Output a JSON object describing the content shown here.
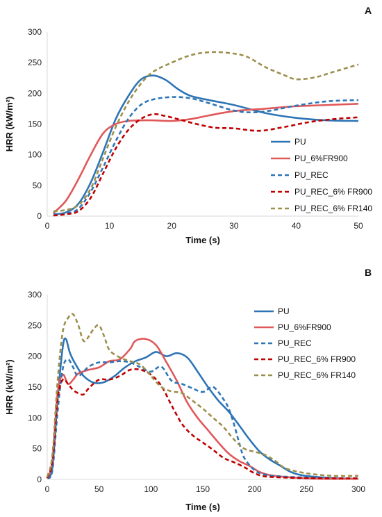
{
  "chart_data": [
    {
      "type": "line",
      "panel_label": "A",
      "xlabel": "Time (s)",
      "ylabel": "HRR (kW/m²)",
      "xlim": [
        0,
        50
      ],
      "ylim": [
        0,
        300
      ],
      "x_ticks": [
        "0",
        "10",
        "20",
        "30",
        "40",
        "50"
      ],
      "y_ticks": [
        "0",
        "50",
        "100",
        "150",
        "200",
        "250",
        "300"
      ],
      "grid": false,
      "legend_position": "right",
      "series": [
        {
          "name": "PU",
          "color": "#2e75b6",
          "dash": "solid",
          "x": [
            1,
            3,
            5,
            7,
            9,
            11,
            13,
            15,
            17,
            19,
            21,
            23,
            26,
            30,
            35,
            40,
            45,
            50
          ],
          "y": [
            3,
            6,
            20,
            55,
            105,
            158,
            195,
            222,
            229,
            222,
            207,
            196,
            189,
            181,
            168,
            160,
            156,
            155
          ]
        },
        {
          "name": "PU_6%FR900",
          "color": "#e0585a",
          "dash": "solid",
          "x": [
            1,
            3,
            5,
            7,
            9,
            11,
            13,
            15,
            17,
            20,
            23,
            26,
            30,
            35,
            40,
            45,
            50
          ],
          "y": [
            5,
            25,
            60,
            100,
            135,
            150,
            155,
            156,
            156,
            155,
            158,
            164,
            171,
            175,
            179,
            181,
            183
          ]
        },
        {
          "name": "PU_REC",
          "color": "#2e75b6",
          "dash": "dashed",
          "x": [
            1,
            3,
            5,
            7,
            9,
            11,
            13,
            15,
            17,
            20,
            23,
            26,
            30,
            33,
            36,
            40,
            45,
            50
          ],
          "y": [
            2,
            4,
            12,
            40,
            80,
            122,
            158,
            181,
            190,
            194,
            192,
            184,
            172,
            169,
            172,
            180,
            187,
            189
          ]
        },
        {
          "name": "PU_REC_6% FR900",
          "color": "#c00000",
          "dash": "dashed",
          "x": [
            1,
            3,
            5,
            7,
            9,
            11,
            13,
            15,
            17,
            19,
            21,
            24,
            27,
            30,
            34,
            38,
            42,
            46,
            50
          ],
          "y": [
            1,
            3,
            8,
            30,
            70,
            110,
            140,
            158,
            166,
            163,
            158,
            150,
            144,
            143,
            139,
            145,
            153,
            158,
            161
          ]
        },
        {
          "name": "PU_REC_6% FR140",
          "color": "#9c8f4c",
          "dash": "dashed",
          "x": [
            1,
            3,
            5,
            7,
            9,
            11,
            13,
            15,
            17,
            20,
            23,
            26,
            29,
            32,
            35,
            38,
            40,
            43,
            46,
            50
          ],
          "y": [
            8,
            10,
            18,
            45,
            95,
            145,
            185,
            215,
            235,
            250,
            262,
            267,
            266,
            260,
            243,
            230,
            223,
            226,
            235,
            247
          ]
        }
      ]
    },
    {
      "type": "line",
      "panel_label": "B",
      "xlabel": "Time (s)",
      "ylabel": "HRR (kW/m²)",
      "xlim": [
        0,
        300
      ],
      "ylim": [
        0,
        300
      ],
      "x_ticks": [
        "0",
        "50",
        "100",
        "150",
        "200",
        "250",
        "300"
      ],
      "y_ticks": [
        "0",
        "50",
        "100",
        "150",
        "200",
        "250",
        "300"
      ],
      "grid": false,
      "legend_position": "top-right",
      "series": [
        {
          "name": "PU",
          "color": "#2e75b6",
          "dash": "solid",
          "x": [
            0,
            5,
            10,
            15,
            18,
            22,
            28,
            35,
            45,
            55,
            65,
            75,
            85,
            95,
            105,
            115,
            125,
            135,
            145,
            155,
            165,
            175,
            185,
            195,
            205,
            215,
            225,
            235,
            245,
            260,
            280,
            300
          ],
          "y": [
            2,
            20,
            130,
            215,
            228,
            205,
            185,
            168,
            157,
            158,
            168,
            182,
            192,
            198,
            207,
            200,
            205,
            198,
            175,
            150,
            128,
            110,
            88,
            65,
            45,
            32,
            22,
            12,
            7,
            4,
            2,
            1
          ]
        },
        {
          "name": "PU_6%FR900",
          "color": "#e0585a",
          "dash": "solid",
          "x": [
            0,
            5,
            10,
            15,
            20,
            25,
            30,
            40,
            50,
            60,
            70,
            80,
            85,
            95,
            105,
            115,
            125,
            135,
            145,
            155,
            165,
            175,
            185,
            195,
            205,
            215,
            230,
            250,
            270,
            300
          ],
          "y": [
            2,
            30,
            140,
            170,
            155,
            162,
            172,
            178,
            182,
            192,
            195,
            212,
            225,
            228,
            218,
            190,
            160,
            125,
            100,
            80,
            60,
            42,
            30,
            22,
            12,
            7,
            4,
            2,
            1,
            1
          ]
        },
        {
          "name": "PU_REC",
          "color": "#2e75b6",
          "dash": "dashed",
          "x": [
            0,
            5,
            10,
            15,
            20,
            25,
            30,
            40,
            50,
            60,
            70,
            80,
            90,
            100,
            110,
            120,
            130,
            140,
            150,
            160,
            170,
            175,
            180,
            185,
            190,
            200,
            210,
            225,
            250,
            275,
            300
          ],
          "y": [
            2,
            15,
            110,
            180,
            195,
            182,
            168,
            183,
            190,
            190,
            192,
            190,
            182,
            175,
            183,
            160,
            155,
            148,
            142,
            150,
            130,
            115,
            90,
            60,
            35,
            15,
            8,
            5,
            3,
            2,
            2
          ]
        },
        {
          "name": "PU_REC_6% FR900",
          "color": "#c00000",
          "dash": "dashed",
          "x": [
            0,
            5,
            10,
            15,
            20,
            25,
            30,
            35,
            40,
            50,
            60,
            70,
            80,
            90,
            100,
            110,
            120,
            130,
            140,
            150,
            160,
            170,
            180,
            190,
            200,
            210,
            230,
            260,
            300
          ],
          "y": [
            2,
            30,
            130,
            162,
            155,
            145,
            140,
            138,
            148,
            162,
            162,
            168,
            178,
            178,
            170,
            152,
            120,
            90,
            72,
            60,
            48,
            35,
            28,
            20,
            10,
            5,
            3,
            2,
            2
          ]
        },
        {
          "name": "PU_REC_6% FR140",
          "color": "#9c8f4c",
          "dash": "dashed",
          "x": [
            0,
            5,
            10,
            15,
            20,
            25,
            30,
            35,
            40,
            45,
            50,
            55,
            60,
            70,
            80,
            90,
            100,
            110,
            120,
            130,
            140,
            150,
            160,
            170,
            180,
            190,
            200,
            210,
            220,
            230,
            250,
            275,
            300
          ],
          "y": [
            4,
            40,
            160,
            240,
            262,
            268,
            250,
            225,
            232,
            245,
            250,
            232,
            210,
            198,
            192,
            186,
            168,
            150,
            143,
            140,
            128,
            115,
            100,
            85,
            65,
            50,
            45,
            40,
            30,
            18,
            10,
            6,
            6
          ]
        }
      ]
    }
  ]
}
